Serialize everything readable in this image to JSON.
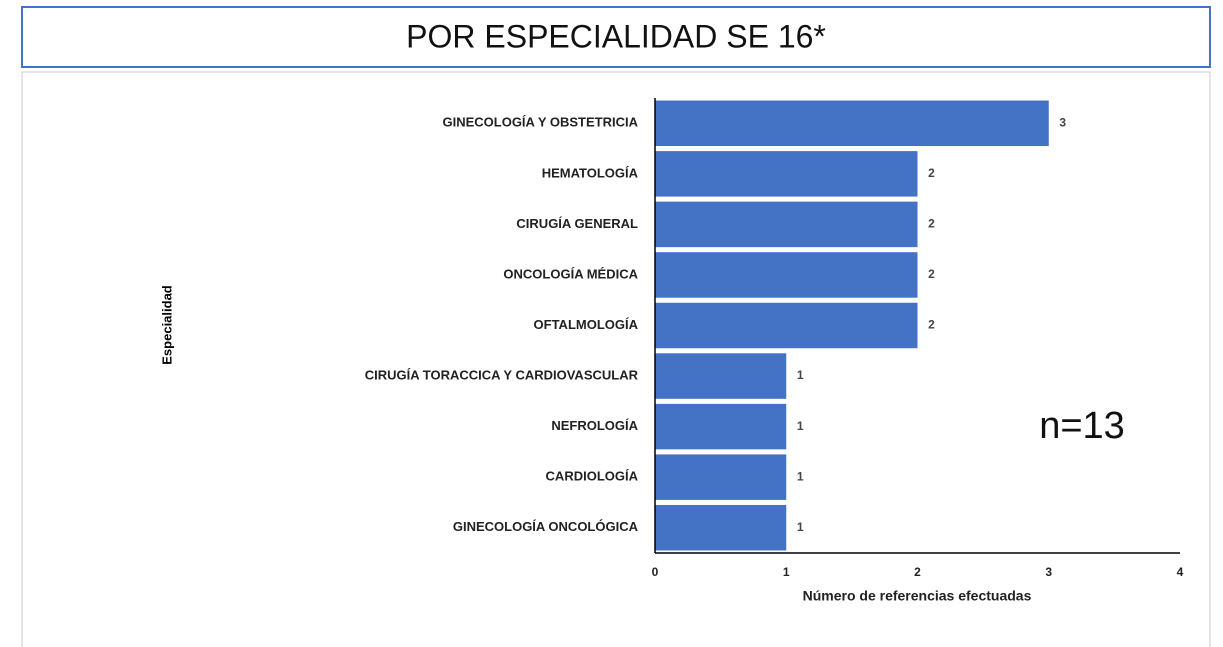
{
  "chart_data": {
    "type": "bar",
    "orientation": "horizontal",
    "title": "POR ESPECIALIDAD SE 16*",
    "x_label": "Número de referencias efectuadas",
    "y_label": "Especialidad",
    "annotation": "n=13",
    "categories": [
      "GINECOLOGÍA Y OBSTETRICIA",
      "HEMATOLOGÍA",
      "CIRUGÍA GENERAL",
      "ONCOLOGÍA MÉDICA",
      "OFTALMOLOGÍA",
      "CIRUGÍA TORACCICA Y CARDIOVASCULAR",
      "NEFROLOGÍA",
      "CARDIOLOGÍA",
      "GINECOLOGÍA ONCOLÓGICA"
    ],
    "values": [
      3,
      2,
      2,
      2,
      2,
      1,
      1,
      1,
      1
    ],
    "color": "#4472c4",
    "xlim": [
      0,
      4
    ],
    "xticks": [
      0,
      1,
      2,
      3,
      4
    ],
    "grid": false
  }
}
